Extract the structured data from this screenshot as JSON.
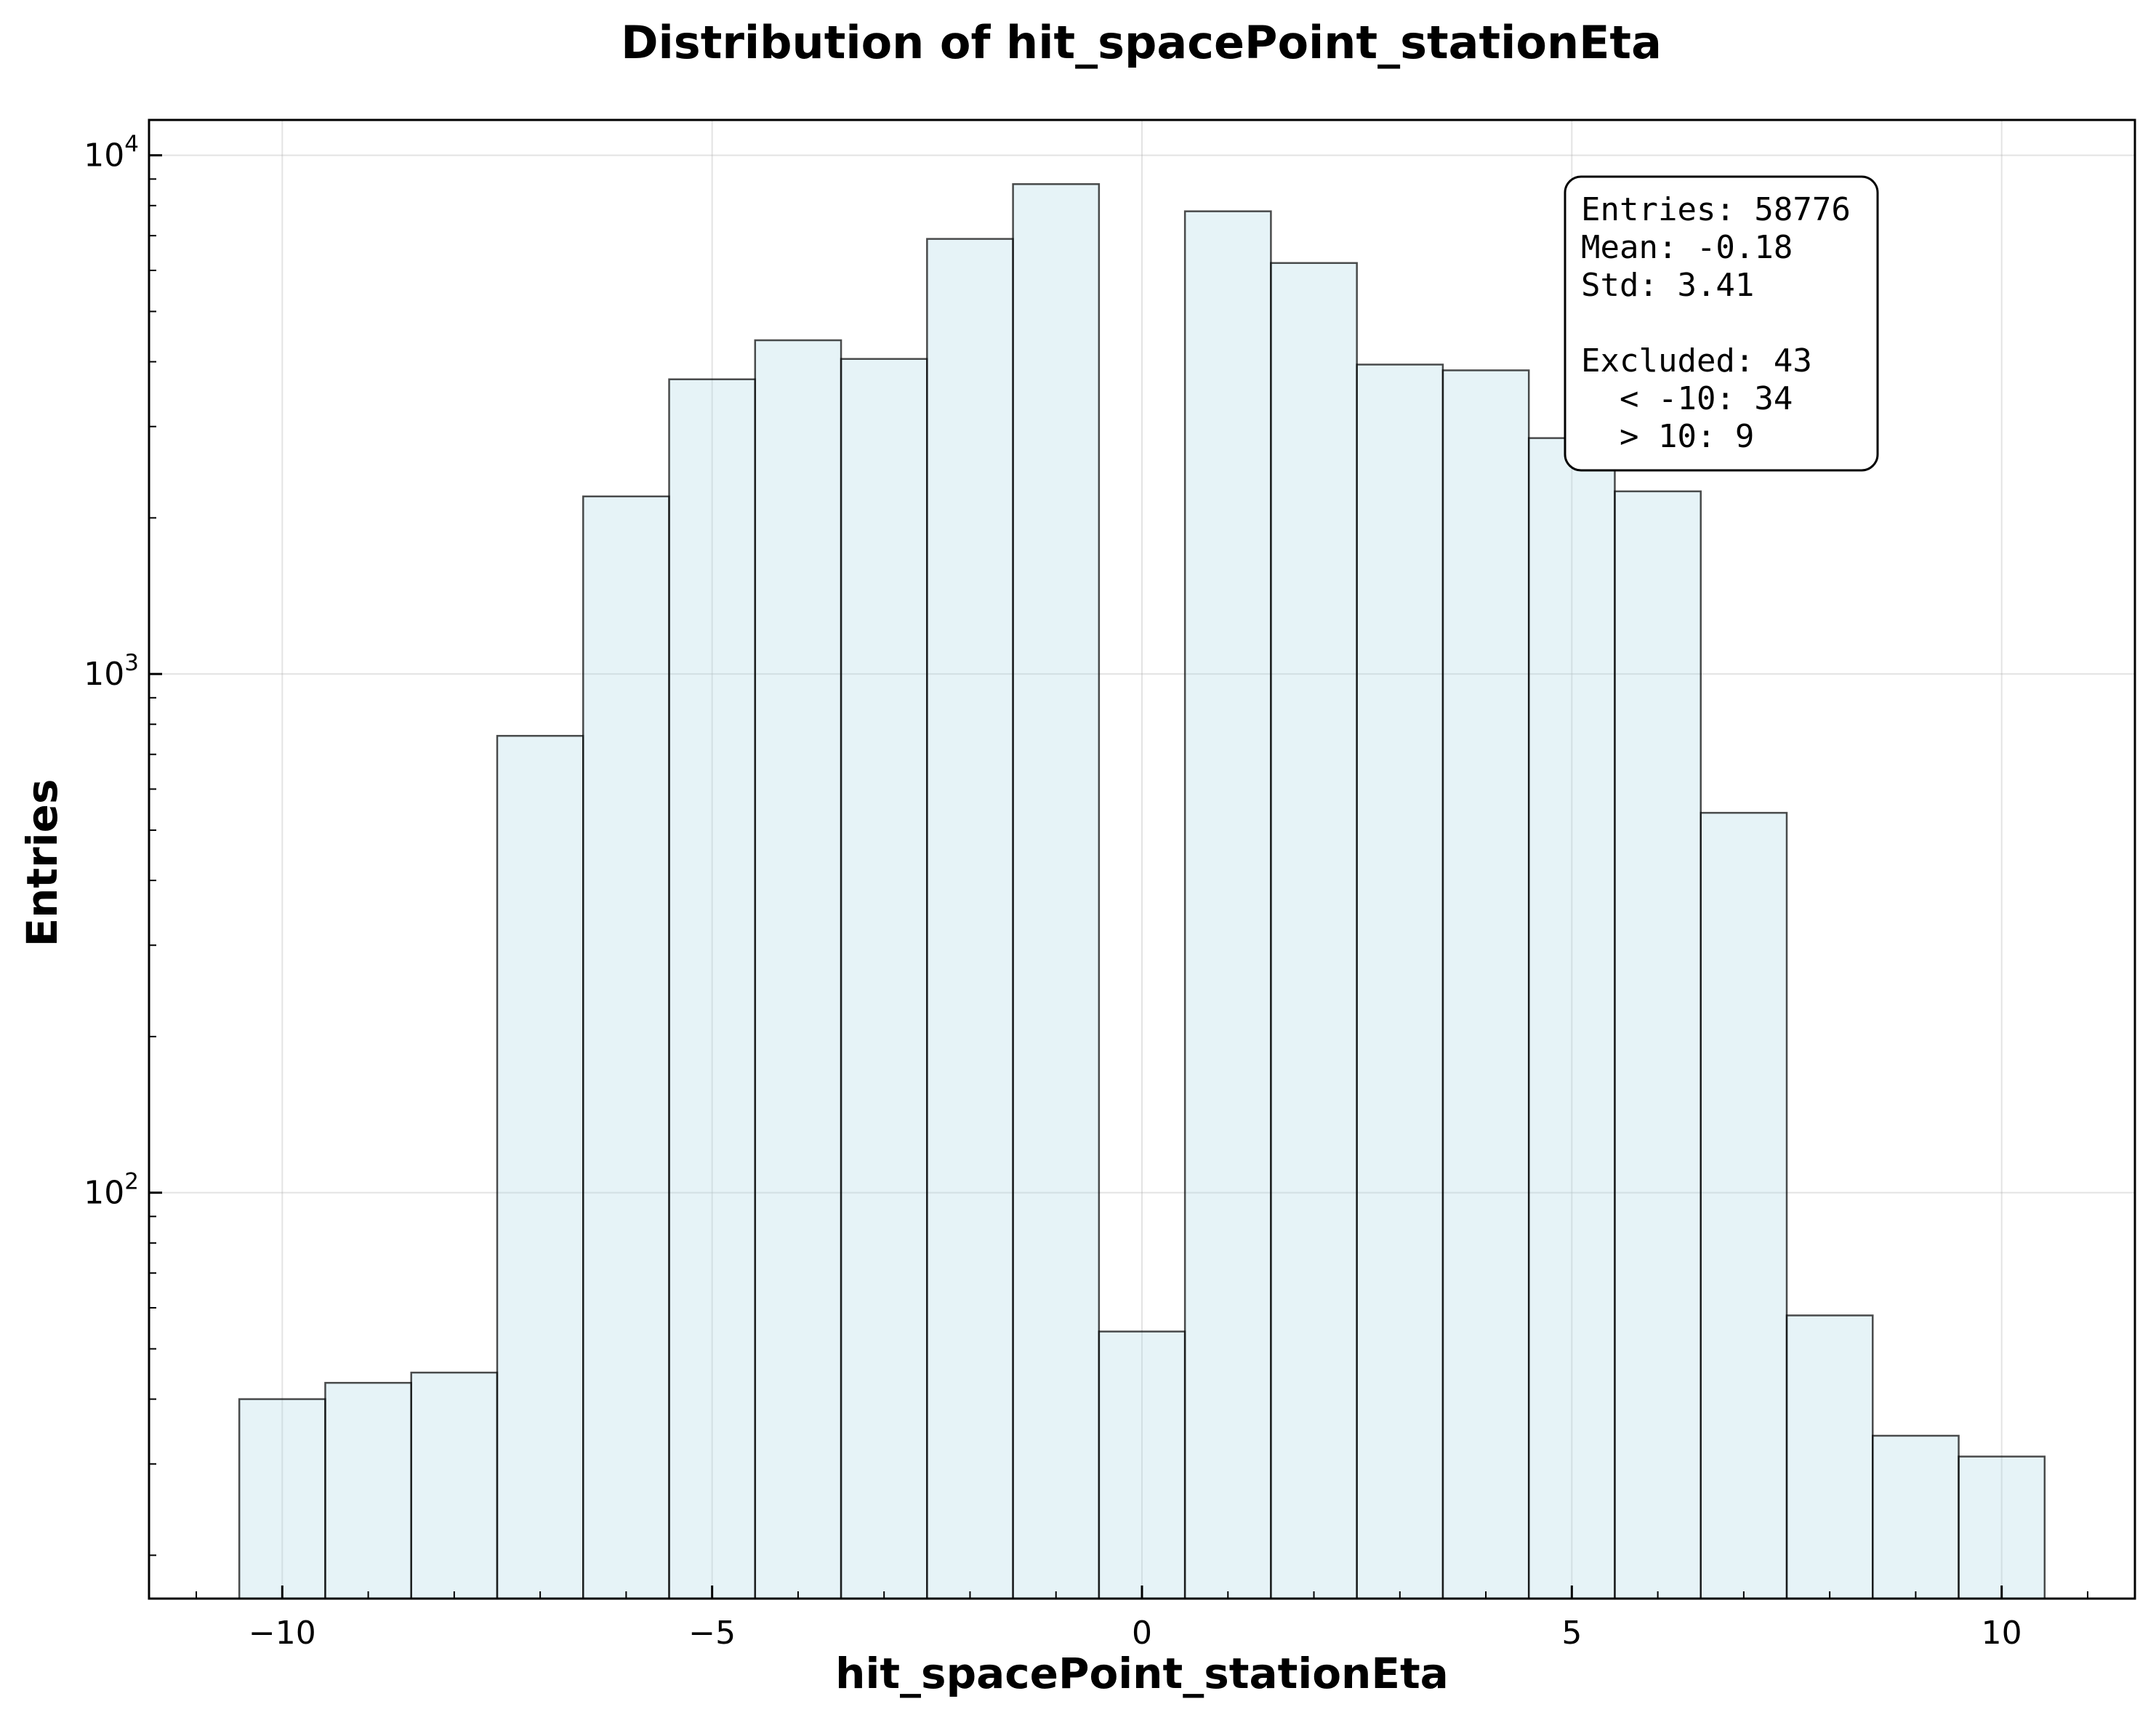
{
  "chart_data": {
    "type": "bar",
    "title": "Distribution of hit_spacePoint_stationEta",
    "xlabel": "hit_spacePoint_stationEta",
    "ylabel": "Entries",
    "yscale": "log",
    "xlim": [
      -11.55,
      11.55
    ],
    "ylim": [
      16.5,
      11700
    ],
    "xticks": [
      -10,
      -5,
      0,
      5,
      10
    ],
    "xtick_labels": [
      "−10",
      "−5",
      "0",
      "5",
      "10"
    ],
    "yticks": [
      100,
      1000,
      10000
    ],
    "ytick_labels": [
      {
        "base": "10",
        "exp": "2"
      },
      {
        "base": "10",
        "exp": "3"
      },
      {
        "base": "10",
        "exp": "4"
      }
    ],
    "grid": true,
    "bar_color": "#add8e6",
    "bin_edges": [
      -10.5,
      -9.5,
      -8.5,
      -7.5,
      -6.5,
      -5.5,
      -4.5,
      -3.5,
      -2.5,
      -1.5,
      -0.5,
      0.5,
      1.5,
      2.5,
      3.5,
      4.5,
      5.5,
      6.5,
      7.5,
      8.5,
      9.5,
      10.5
    ],
    "values": [
      40,
      43,
      45,
      760,
      2200,
      3700,
      4400,
      4050,
      6900,
      8800,
      54,
      7800,
      6200,
      3950,
      3850,
      2850,
      2250,
      540,
      58,
      34,
      31
    ],
    "stats_box": {
      "position": "top-right",
      "lines": [
        "Entries: 58776",
        "Mean: -0.18",
        "Std: 3.41",
        "",
        "Excluded: 43",
        "  < -10: 34",
        "  > 10: 9"
      ]
    }
  }
}
